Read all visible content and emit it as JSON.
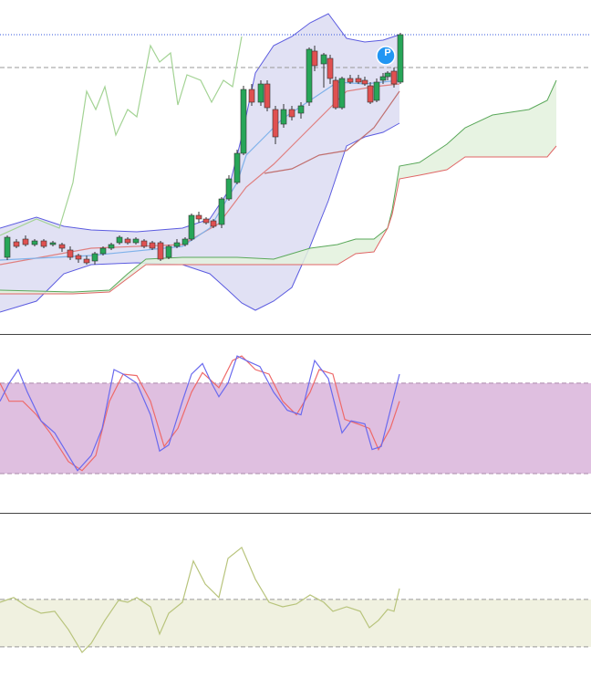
{
  "chart_data": [
    {
      "type": "candlestick",
      "xlim": [
        0,
        648
      ],
      "ylim": [
        0,
        365
      ],
      "annotation": "P",
      "up_color": "#27a658",
      "down_color": "#e05050",
      "x": [
        8,
        18,
        28,
        38,
        48,
        58,
        68,
        77,
        86,
        95,
        104,
        113,
        122,
        131,
        140,
        149,
        158,
        167,
        176,
        185,
        194,
        203,
        210,
        218,
        226,
        234,
        243,
        251,
        260,
        267,
        276,
        286,
        293,
        302,
        311,
        320,
        330,
        339,
        345,
        355,
        362,
        368,
        375,
        384,
        393,
        400,
        406,
        413,
        420,
        425,
        432,
        439
      ],
      "open": [
        83,
        100,
        103,
        97,
        101,
        97,
        97,
        91,
        85,
        81,
        79,
        87,
        93,
        99,
        103,
        99,
        101,
        99,
        99,
        83,
        95,
        97,
        103,
        129,
        125,
        123,
        119,
        147,
        165,
        197,
        267,
        253,
        273,
        245,
        229,
        245,
        241,
        253,
        309,
        295,
        301,
        277,
        247,
        279,
        279,
        277,
        271,
        255,
        277,
        281,
        287,
        275
      ],
      "close": [
        105,
        95,
        97,
        101,
        95,
        99,
        93,
        83,
        81,
        77,
        87,
        93,
        97,
        105,
        99,
        103,
        95,
        93,
        81,
        95,
        99,
        103,
        129,
        125,
        121,
        117,
        147,
        169,
        197,
        267,
        253,
        273,
        247,
        215,
        245,
        237,
        249,
        311,
        293,
        305,
        279,
        247,
        279,
        275,
        275,
        273,
        253,
        275,
        281,
        285,
        273,
        327
      ],
      "high": [
        107,
        103,
        107,
        103,
        103,
        101,
        99,
        95,
        87,
        85,
        89,
        95,
        99,
        107,
        105,
        105,
        103,
        101,
        101,
        97,
        103,
        105,
        131,
        133,
        127,
        125,
        149,
        173,
        201,
        271,
        273,
        277,
        277,
        249,
        251,
        249,
        253,
        313,
        315,
        307,
        305,
        281,
        281,
        283,
        283,
        281,
        275,
        279,
        285,
        287,
        291,
        329
      ],
      "low": [
        80,
        93,
        95,
        95,
        93,
        95,
        89,
        80,
        77,
        75,
        75,
        85,
        91,
        97,
        97,
        97,
        93,
        91,
        79,
        81,
        93,
        95,
        101,
        121,
        119,
        115,
        115,
        145,
        163,
        195,
        249,
        249,
        243,
        207,
        225,
        233,
        235,
        249,
        287,
        269,
        273,
        245,
        245,
        273,
        273,
        271,
        251,
        253,
        273,
        277,
        269,
        273
      ],
      "bands": [
        {
          "x": [
            0,
            40,
            70,
            100,
            150,
            200,
            230,
            250,
            265,
            280,
            300,
            320,
            340,
            360,
            380,
            400,
            420,
            438
          ],
          "upper": [
            115,
            127,
            117,
            113,
            111,
            115,
            125,
            155,
            215,
            285,
            315,
            325,
            340,
            350,
            323,
            319,
            321,
            327
          ],
          "lower": [
            23,
            35,
            65,
            75,
            77,
            75,
            65,
            47,
            33,
            25,
            35,
            50,
            95,
            145,
            205,
            215,
            220,
            230
          ],
          "fill": "#dcdcf2",
          "upper_color": "#5c5ce0",
          "lower_color": "#5c5ce0"
        },
        {
          "x": [
            0,
            80,
            120,
            140,
            160,
            200,
            260,
            300,
            340,
            370,
            390,
            410,
            425,
            430,
            438,
            460,
            490,
            510,
            540,
            580,
            600,
            610
          ],
          "upper": [
            47,
            45,
            47,
            65,
            81,
            83,
            83,
            81,
            93,
            97,
            103,
            103,
            115,
            135,
            183,
            187,
            207,
            225,
            239,
            245,
            255,
            277
          ],
          "lower": [
            43,
            43,
            45,
            60,
            75,
            75,
            75,
            75,
            75,
            75,
            87,
            89,
            115,
            130,
            169,
            173,
            179,
            193,
            193,
            193,
            193,
            205
          ],
          "fill": "#e3f1dd",
          "upper_color": "#5aa85a",
          "lower_color": "#e06666"
        }
      ],
      "hlines": [
        {
          "value": 327,
          "color": "#3355dd",
          "dash": "1,2"
        },
        {
          "value": 291,
          "color": "#999999",
          "dash": "5,3"
        }
      ],
      "series": [
        {
          "color": "#a3d394",
          "x": [
            0,
            40,
            65,
            80,
            95,
            105,
            115,
            127,
            140,
            150,
            165,
            175,
            187,
            195,
            205,
            220,
            232,
            245,
            255,
            265
          ],
          "values": [
            107,
            125,
            115,
            165,
            265,
            245,
            270,
            217,
            245,
            237,
            315,
            297,
            307,
            250,
            283,
            277,
            253,
            277,
            270,
            325
          ]
        },
        {
          "color": "#e08080",
          "x": [
            0,
            100,
            200,
            240,
            270,
            300,
            330,
            360,
            380,
            410,
            438
          ],
          "values": [
            75,
            93,
            97,
            120,
            160,
            185,
            215,
            245,
            265,
            270,
            273
          ]
        },
        {
          "color": "#c07070",
          "x": [
            290,
            320,
            350,
            380,
            410,
            438
          ],
          "values": [
            175,
            180,
            195,
            200,
            225,
            265
          ]
        },
        {
          "color": "#7fb2ea",
          "x": [
            0,
            100,
            200,
            230,
            260,
            270,
            290,
            310,
            340,
            370,
            400,
            438
          ],
          "values": [
            80,
            85,
            95,
            115,
            165,
            195,
            215,
            235,
            255,
            275,
            273,
            277
          ]
        }
      ]
    },
    {
      "type": "line",
      "xlim": [
        0,
        648
      ],
      "ylim": [
        -6,
        112
      ],
      "levels": [
        20,
        80
      ],
      "level_fill": "#dfbfe0",
      "level_color": "#aa88aa",
      "series": [
        {
          "color": "#ee6a6a",
          "x": [
            0,
            10,
            25,
            40,
            55,
            75,
            90,
            105,
            120,
            135,
            150,
            165,
            180,
            195,
            210,
            222,
            240,
            255,
            265,
            280,
            295,
            310,
            325,
            340,
            350,
            365,
            378,
            392,
            405,
            415,
            428,
            438
          ],
          "values": [
            80,
            68,
            68,
            59,
            47,
            28,
            22,
            32,
            68,
            86,
            85,
            68,
            38,
            50,
            74,
            87,
            77,
            95,
            98,
            89,
            86,
            68,
            59,
            74,
            89,
            86,
            56,
            53,
            50,
            36,
            50,
            68
          ]
        },
        {
          "color": "#6a6aee",
          "x": [
            0,
            10,
            20,
            30,
            45,
            60,
            75,
            85,
            100,
            112,
            125,
            135,
            150,
            165,
            175,
            185,
            200,
            210,
            222,
            232,
            240,
            250,
            260,
            270,
            285,
            300,
            315,
            330,
            345,
            360,
            375,
            385,
            400,
            408,
            418,
            428,
            438
          ],
          "values": [
            68,
            80,
            89,
            74,
            55,
            47,
            32,
            22,
            32,
            50,
            89,
            86,
            80,
            59,
            35,
            39,
            68,
            86,
            93,
            80,
            71,
            80,
            98,
            95,
            91,
            74,
            62,
            59,
            95,
            83,
            47,
            55,
            53,
            36,
            38,
            62,
            86
          ]
        }
      ]
    },
    {
      "type": "line",
      "xlim": [
        0,
        648
      ],
      "ylim": [
        -231,
        461
      ],
      "levels": [
        -100,
        100
      ],
      "level_fill": "#f0f1e0",
      "level_color": "#999999",
      "series": [
        {
          "color": "#b8c47c",
          "x": [
            0,
            15,
            30,
            45,
            60,
            75,
            90,
            100,
            115,
            130,
            140,
            150,
            165,
            175,
            185,
            200,
            212,
            225,
            240,
            250,
            265,
            280,
            295,
            310,
            325,
            340,
            355,
            365,
            380,
            395,
            405,
            415,
            425,
            432,
            438
          ],
          "values": [
            88,
            108,
            69,
            42,
            50,
            -27,
            -123,
            -85,
            12,
            96,
            88,
            108,
            69,
            -46,
            42,
            88,
            262,
            165,
            108,
            273,
            319,
            185,
            88,
            69,
            81,
            119,
            88,
            50,
            69,
            50,
            -19,
            12,
            58,
            50,
            146
          ]
        }
      ]
    }
  ]
}
